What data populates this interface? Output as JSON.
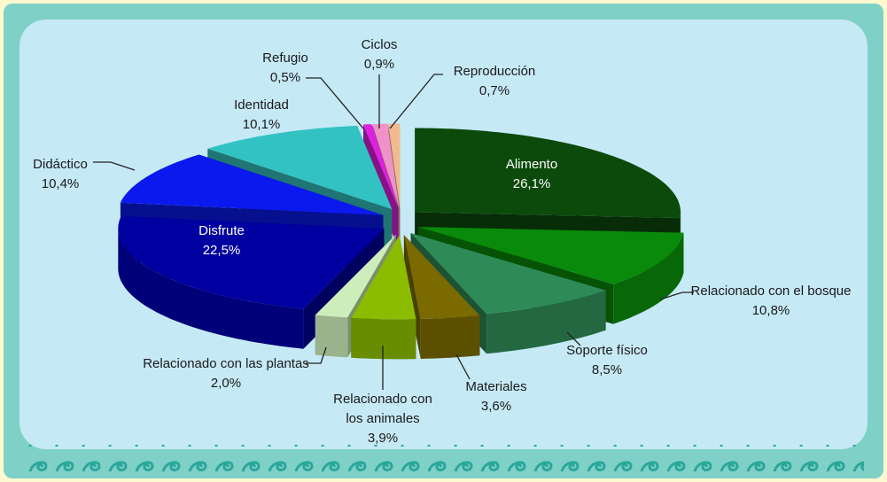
{
  "chart_data": {
    "type": "pie",
    "categories": [
      "Alimento",
      "Relacionado con el bosque",
      "Soporte físico",
      "Materiales",
      "Relacionado con los animales",
      "Relacionado con las plantas",
      "Disfrute",
      "Didáctico",
      "Identidad",
      "Refugio",
      "Ciclos",
      "Reproducción"
    ],
    "values": [
      26.1,
      10.8,
      8.5,
      3.6,
      3.9,
      2.0,
      22.5,
      10.4,
      10.1,
      0.5,
      0.9,
      0.7
    ],
    "value_labels": [
      "26,1%",
      "10,8%",
      "8,5%",
      "3,6%",
      "3,9%",
      "2,0%",
      "22,5%",
      "10,4%",
      "10,1%",
      "0,5%",
      "0,9%",
      "0,7%"
    ],
    "colors": [
      "#0b4a0b",
      "#0a8a0a",
      "#2e8b57",
      "#7a6a00",
      "#8cbc00",
      "#cdeebb",
      "#0000a0",
      "#0a1aee",
      "#33c2c2",
      "#e020e0",
      "#ef92c8",
      "#f2b98f"
    ]
  }
}
